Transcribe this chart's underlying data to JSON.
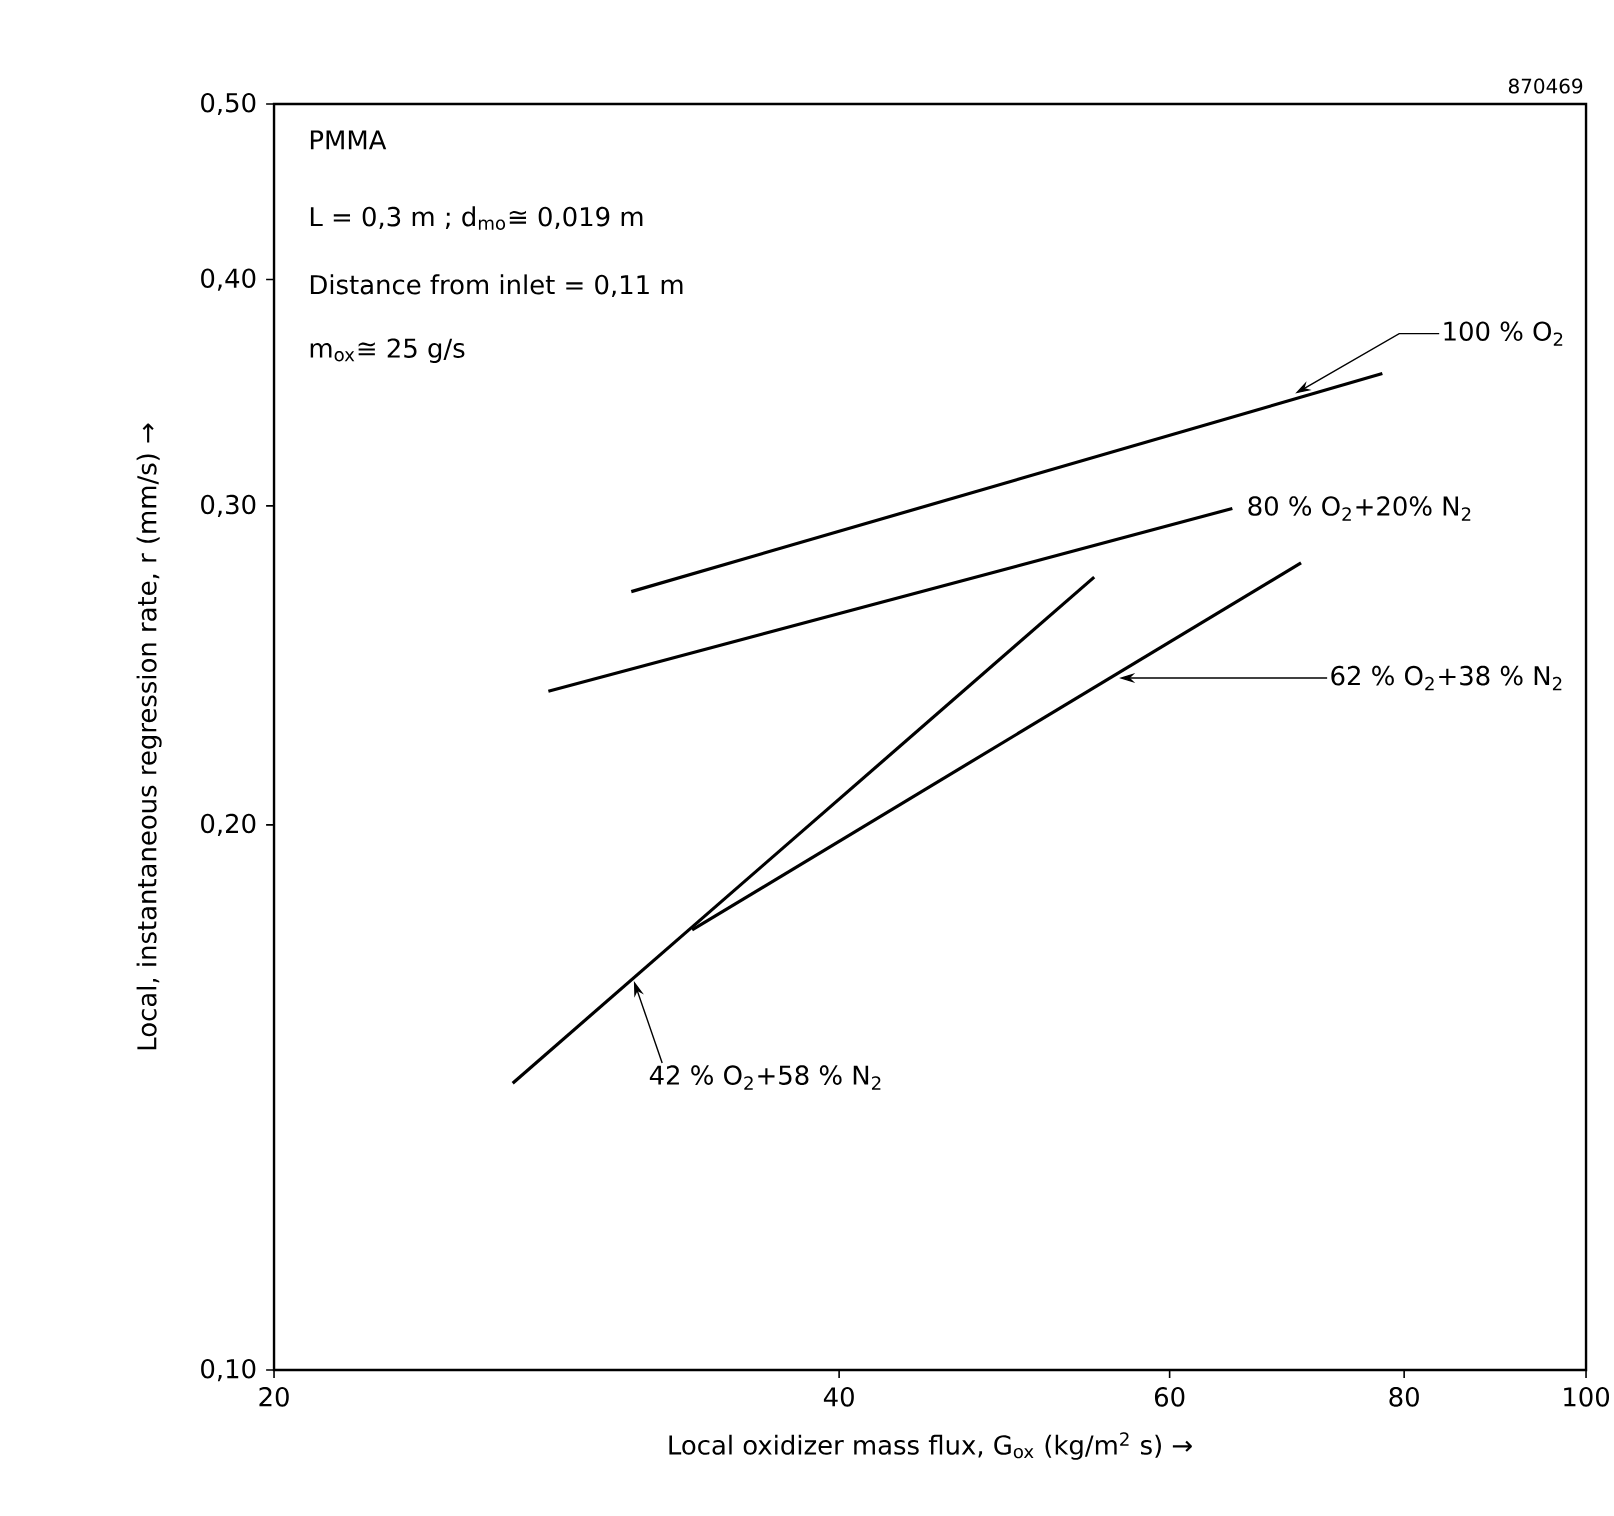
{
  "chart_data": {
    "type": "line",
    "xlabel": "Local oxidizer mass flux, G$_{ox}$ (kg/m$^{2}$ s) →",
    "ylabel": "Local, instantaneous regression rate, r (mm/s) →",
    "log": "xy",
    "xlim": [
      20,
      100
    ],
    "ylim": [
      0.1,
      0.5
    ],
    "xticks": [
      20,
      40,
      60,
      80,
      100
    ],
    "yticks": [
      {
        "value": 0.1,
        "label": "0,10"
      },
      {
        "value": 0.2,
        "label": "0,20"
      },
      {
        "value": 0.3,
        "label": "0,30"
      },
      {
        "value": 0.4,
        "label": "0,40"
      },
      {
        "value": 0.5,
        "label": "0,50"
      }
    ],
    "grid": false,
    "marker": "none",
    "line_style": "solid",
    "series": [
      {
        "color": "#000000",
        "x": [
          31.0,
          77.9
        ],
        "values": [
          0.269,
          0.355
        ]
      },
      {
        "color": "#000000",
        "x": [
          28.0,
          64.8
        ],
        "values": [
          0.237,
          0.299
        ]
      },
      {
        "color": "#000000",
        "x": [
          33.4,
          70.5
        ],
        "values": [
          0.175,
          0.279
        ]
      },
      {
        "color": "#000000",
        "x": [
          26.8,
          54.7
        ],
        "values": [
          0.144,
          0.274
        ]
      }
    ],
    "annotations": [
      "870469",
      "PMMA",
      "L = 0,3 m ; d$_{mo}$≅ 0,019 m",
      "Distance from inlet = 0,11 m",
      "m$_{ox}$≅ 25 g/s",
      {
        "text": "100 % O$_{2}$",
        "x": 70,
        "y": 0.346
      },
      {
        "text": "80 % O$_{2}$+20% N$_{2}$",
        "x": 64.8,
        "y": 0.299
      },
      {
        "text": "62 % O$_{2}$+38 % N$_{2}$",
        "x": 56.4,
        "y": 0.241
      },
      {
        "text": "42 % O$_{2}$+58 % N$_{2}$",
        "x": 31.1,
        "y": 0.164
      }
    ]
  }
}
